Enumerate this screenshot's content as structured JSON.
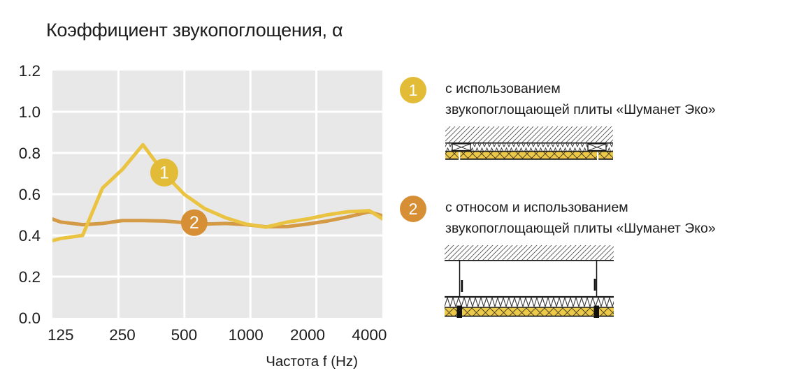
{
  "title": "Коэффициент звукопоглощения, α",
  "chart_data": {
    "type": "line",
    "title": "Коэффициент звукопоглощения, α",
    "xlabel": "Частота f (Hz)",
    "ylabel": "α",
    "x_scale": "log",
    "xlim": [
      114,
      4630
    ],
    "ylim": [
      0,
      1.2
    ],
    "x_ticks": [
      125,
      250,
      500,
      1000,
      2000,
      4000
    ],
    "y_ticks": [
      0.0,
      0.2,
      0.4,
      0.6,
      0.8,
      1.0,
      1.2
    ],
    "grid": true,
    "plot_bg": "#e8e8e8",
    "grid_color": "#ffffff",
    "frequencies": [
      100,
      125,
      160,
      200,
      250,
      315,
      400,
      500,
      630,
      800,
      1000,
      1250,
      1600,
      2000,
      2500,
      3150,
      4000,
      5000
    ],
    "series": [
      {
        "name": "с использованием звукопоглощающей плиты «Шуманет Эко»",
        "color": "#EAC341",
        "marker": {
          "label": "1",
          "f": 400,
          "alpha": 0.705,
          "color": "#E2BB37"
        },
        "alpha": [
          0.36,
          0.385,
          0.4,
          0.63,
          0.72,
          0.84,
          0.7,
          0.6,
          0.53,
          0.485,
          0.455,
          0.44,
          0.465,
          0.48,
          0.5,
          0.515,
          0.52,
          0.46
        ]
      },
      {
        "name": "с относом и использованием звукопоглощающей плиты «Шуманет Эко»",
        "color": "#D49A45",
        "marker": {
          "label": "2",
          "f": 560,
          "alpha": 0.462,
          "color": "#D78F35"
        },
        "alpha": [
          0.5,
          0.465,
          0.452,
          0.458,
          0.472,
          0.472,
          0.47,
          0.462,
          0.455,
          0.458,
          0.452,
          0.442,
          0.443,
          0.455,
          0.47,
          0.49,
          0.515,
          0.485
        ]
      }
    ],
    "legend_position": "right"
  },
  "legend": {
    "items": [
      {
        "number": "1",
        "badge_color": "#E2BB37",
        "line1": "с использованием",
        "line2": "звукопоглощающей плиты «Шуманет Эко»"
      },
      {
        "number": "2",
        "badge_color": "#D78F35",
        "line1": "с относом и использованием",
        "line2": "звукопоглощающей плиты «Шуманет Эко»"
      }
    ]
  }
}
